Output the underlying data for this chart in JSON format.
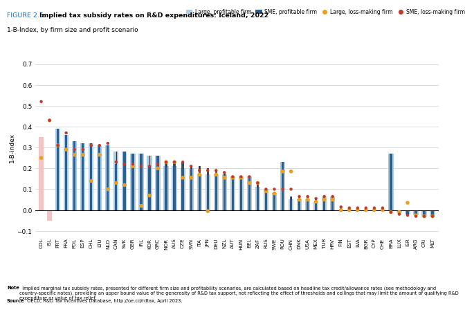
{
  "title_prefix": "FIGURE 2.5.",
  "title_bold": "Implied tax subsidy rates on R&D expenditures: Iceland, 2022",
  "subtitle": "1-B-Index, by firm size and profit scenario",
  "ylabel": "1-B-index",
  "ylim": [
    -0.13,
    0.73
  ],
  "yticks": [
    -0.1,
    0.0,
    0.1,
    0.2,
    0.3,
    0.4,
    0.5,
    0.6,
    0.7
  ],
  "note1_bold": "Note",
  "note1_rest": "  Implied marginal tax subsidy rates, presented for different firm size and profitability scenarios, are calculated based on headline tax credit/allowance rates (see methodology and country-specific notes), providing an upper bound value of the generosity of R&D tax support, not reflecting the effect of thresholds and ceilings that may limit the amount of qualifying R&D expenditure or value of tax relief.",
  "source_bold": "Source",
  "source_rest": " OECD, R&D Tax Incentives Database, http://oe.cd/rdtax, April 2023.",
  "countries": [
    "COL",
    "ISL",
    "PRT",
    "FRA",
    "POL",
    "ESP",
    "CHL",
    "LTU",
    "NLD",
    "CAN",
    "SVK",
    "GBR",
    "IRL",
    "KOR",
    "GRC",
    "NOR",
    "AUS",
    "CZE",
    "SVN",
    "ITA",
    "JPN",
    "DEU",
    "NZL",
    "AUT",
    "HUN",
    "BEL",
    "ZAF",
    "RUS",
    "SWE",
    "ROU",
    "CHN",
    "DNK",
    "USA",
    "MEX",
    "TUR",
    "HRV",
    "FIN",
    "EST",
    "LVA",
    "BGR",
    "CYP",
    "CHE",
    "BRA",
    "LUX",
    "ISR",
    "ARG",
    "CRI",
    "MLT"
  ],
  "large_profitable": [
    0.35,
    -0.05,
    0.39,
    0.36,
    0.33,
    0.32,
    0.32,
    0.31,
    0.31,
    0.28,
    0.28,
    0.27,
    0.27,
    0.26,
    0.26,
    0.21,
    0.21,
    0.2,
    0.2,
    0.17,
    0.17,
    0.17,
    0.17,
    0.16,
    0.16,
    0.16,
    0.11,
    0.1,
    0.08,
    0.23,
    0.05,
    0.05,
    0.05,
    0.04,
    0.065,
    0.065,
    0.0,
    0.0,
    0.0,
    0.0,
    0.0,
    0.0,
    0.27,
    -0.01,
    -0.02,
    -0.025,
    -0.03,
    -0.03
  ],
  "sme_profitable": [
    0.35,
    -0.05,
    0.39,
    0.36,
    0.33,
    0.32,
    0.32,
    0.31,
    0.31,
    0.22,
    0.28,
    0.27,
    0.27,
    0.21,
    0.26,
    0.23,
    0.23,
    0.23,
    0.21,
    0.21,
    0.2,
    0.19,
    0.18,
    0.16,
    0.16,
    0.16,
    0.13,
    0.1,
    0.08,
    0.23,
    0.065,
    0.065,
    0.065,
    0.055,
    0.065,
    0.065,
    0.015,
    0.01,
    0.01,
    0.01,
    0.01,
    0.01,
    0.27,
    -0.01,
    -0.02,
    -0.025,
    -0.03,
    -0.03
  ],
  "large_loss": [
    0.25,
    0.43,
    0.31,
    0.29,
    0.265,
    0.265,
    0.14,
    0.265,
    0.1,
    0.13,
    0.12,
    0.21,
    0.02,
    0.07,
    0.2,
    0.23,
    0.23,
    0.155,
    0.155,
    0.17,
    -0.005,
    0.17,
    0.155,
    0.155,
    0.155,
    0.13,
    0.13,
    0.09,
    0.08,
    0.185,
    0.185,
    0.05,
    0.05,
    0.04,
    0.05,
    0.05,
    0.0,
    0.0,
    0.0,
    0.0,
    0.0,
    0.0,
    -0.01,
    -0.01,
    0.035,
    -0.025,
    -0.03,
    -0.03
  ],
  "sme_loss": [
    0.52,
    0.43,
    0.31,
    0.37,
    0.29,
    0.29,
    0.31,
    0.31,
    0.32,
    0.23,
    0.22,
    0.22,
    0.21,
    0.21,
    0.22,
    0.23,
    0.23,
    0.23,
    0.21,
    0.19,
    0.19,
    0.19,
    0.18,
    0.16,
    0.16,
    0.16,
    0.13,
    0.1,
    0.1,
    0.1,
    0.1,
    0.065,
    0.065,
    0.055,
    0.065,
    0.065,
    0.015,
    0.01,
    0.01,
    0.01,
    0.01,
    0.01,
    -0.01,
    -0.02,
    -0.025,
    -0.03,
    -0.03,
    -0.03
  ],
  "bar_color_large": "#aecce4",
  "bar_color_sme": "#2e5f8a",
  "dot_color_large_loss": "#e8a020",
  "dot_color_sme_loss": "#c0392b",
  "highlight_color": "#f2c4c4",
  "special_countries": [
    "COL",
    "ISL"
  ]
}
